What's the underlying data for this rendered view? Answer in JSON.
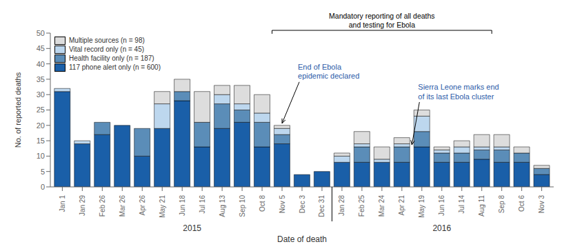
{
  "chart_data": {
    "type": "bar",
    "stacked": true,
    "categories": [
      "Jan 1",
      "Jan 29",
      "Feb 26",
      "Mar 26",
      "Apr 26",
      "May 21",
      "Jun 18",
      "Jul 16",
      "Aug 13",
      "Sep 10",
      "Oct 8",
      "Nov 5",
      "Dec 3",
      "Dec 31",
      "Jan 28",
      "Feb 25",
      "Mar 24",
      "Apr 21",
      "May 19",
      "Jun 16",
      "Jul 14",
      "Aug 11",
      "Sep 8",
      "Oct 6",
      "Nov 3"
    ],
    "series": [
      {
        "name": "117 phone alert only (n = 600)",
        "color": "#1A5FA8",
        "values": [
          31,
          14,
          17,
          20,
          10,
          19,
          28,
          13,
          19,
          21,
          13,
          14,
          4,
          5,
          8,
          8,
          8,
          8,
          13,
          8,
          8,
          9,
          8,
          8,
          4
        ]
      },
      {
        "name": "Health facility only (n = 187)",
        "color": "#5B8DB8",
        "values": [
          0,
          0,
          4,
          0,
          9,
          0,
          3,
          8,
          8,
          4,
          8,
          3,
          0,
          0,
          0,
          5,
          0,
          5,
          5,
          3,
          3,
          3,
          4,
          3,
          2
        ]
      },
      {
        "name": "Vital record only (n = 45)",
        "color": "#BDD7EE",
        "values": [
          1,
          1,
          0,
          0,
          0,
          8,
          0,
          0,
          3,
          2,
          3,
          2,
          0,
          0,
          2,
          1,
          1,
          1,
          5,
          1,
          2,
          1,
          1,
          0,
          0
        ]
      },
      {
        "name": "Multiple sources (n = 98)",
        "color": "#DDDDDD",
        "values": [
          0,
          0,
          0,
          0,
          0,
          4,
          4,
          10,
          3,
          6,
          6,
          1,
          0,
          0,
          1,
          4,
          4,
          2,
          2,
          1,
          2,
          4,
          4,
          2,
          1
        ]
      }
    ],
    "xlabel": "Date of death",
    "ylabel": "No. of reported deaths",
    "ylim": [
      0,
      50
    ],
    "yticks": [
      0,
      5,
      10,
      15,
      20,
      25,
      30,
      35,
      40,
      45,
      50
    ],
    "grid": false,
    "legend": "upper left",
    "annotations": [
      "End of Ebola\nepidemic declared",
      "Sierra Leone marks end\nof its last Ebola cluster",
      "Mandatory reporting of all deaths\nand testing for Ebola",
      "2015",
      "2016"
    ]
  }
}
